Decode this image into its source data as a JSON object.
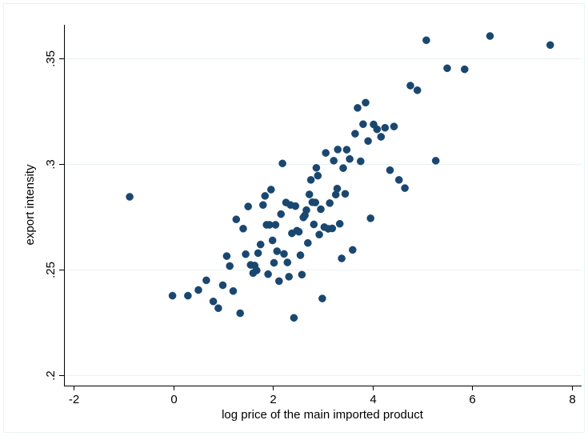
{
  "chart_data": {
    "type": "scatter",
    "title": "",
    "xlabel": "log price of the main imported product",
    "ylabel": "export intensity",
    "xlim": [
      -2.2,
      8.2
    ],
    "ylim": [
      0.195,
      0.366
    ],
    "xticks": [
      -2,
      0,
      2,
      4,
      6,
      8
    ],
    "xtick_labels": [
      "-2",
      "0",
      "2",
      "4",
      "6",
      "8"
    ],
    "yticks": [
      0.2,
      0.25,
      0.3,
      0.35
    ],
    "ytick_labels": [
      ".2",
      ".25",
      ".3",
      ".35"
    ],
    "grid": "horizontal",
    "legend": "none",
    "marker_color": "#1a476f",
    "points": [
      [
        -0.88,
        0.2845
      ],
      [
        -0.02,
        0.2376
      ],
      [
        0.29,
        0.2376
      ],
      [
        0.5,
        0.2403
      ],
      [
        0.66,
        0.2449
      ],
      [
        0.8,
        0.2349
      ],
      [
        0.9,
        0.2317
      ],
      [
        0.99,
        0.2426
      ],
      [
        1.07,
        0.2564
      ],
      [
        1.13,
        0.2517
      ],
      [
        1.2,
        0.2398
      ],
      [
        1.26,
        0.2738
      ],
      [
        1.34,
        0.2293
      ],
      [
        1.4,
        0.2694
      ],
      [
        1.45,
        0.2573
      ],
      [
        1.5,
        0.2799
      ],
      [
        1.55,
        0.2522
      ],
      [
        1.6,
        0.2483
      ],
      [
        1.63,
        0.2519
      ],
      [
        1.67,
        0.2496
      ],
      [
        1.7,
        0.2578
      ],
      [
        1.75,
        0.2619
      ],
      [
        1.8,
        0.2806
      ],
      [
        1.84,
        0.2849
      ],
      [
        1.87,
        0.2712
      ],
      [
        1.9,
        0.2478
      ],
      [
        1.93,
        0.2712
      ],
      [
        1.96,
        0.2879
      ],
      [
        1.99,
        0.2638
      ],
      [
        2.02,
        0.2532
      ],
      [
        2.05,
        0.2712
      ],
      [
        2.08,
        0.2587
      ],
      [
        2.12,
        0.2445
      ],
      [
        2.16,
        0.2763
      ],
      [
        2.19,
        0.3003
      ],
      [
        2.22,
        0.2574
      ],
      [
        2.26,
        0.2818
      ],
      [
        2.29,
        0.2534
      ],
      [
        2.32,
        0.2466
      ],
      [
        2.35,
        0.2806
      ],
      [
        2.38,
        0.2672
      ],
      [
        2.42,
        0.2271
      ],
      [
        2.45,
        0.2801
      ],
      [
        2.48,
        0.2684
      ],
      [
        2.52,
        0.2679
      ],
      [
        2.55,
        0.2568
      ],
      [
        2.58,
        0.2476
      ],
      [
        2.61,
        0.2747
      ],
      [
        2.64,
        0.2757
      ],
      [
        2.67,
        0.2782
      ],
      [
        2.7,
        0.2626
      ],
      [
        2.73,
        0.2856
      ],
      [
        2.76,
        0.2925
      ],
      [
        2.79,
        0.2819
      ],
      [
        2.82,
        0.2714
      ],
      [
        2.85,
        0.2818
      ],
      [
        2.87,
        0.2982
      ],
      [
        2.9,
        0.2945
      ],
      [
        2.93,
        0.2666
      ],
      [
        2.96,
        0.2786
      ],
      [
        2.99,
        0.2363
      ],
      [
        3.03,
        0.2701
      ],
      [
        3.06,
        0.3053
      ],
      [
        3.11,
        0.2693
      ],
      [
        3.14,
        0.2815
      ],
      [
        3.19,
        0.2695
      ],
      [
        3.22,
        0.3016
      ],
      [
        3.26,
        0.2855
      ],
      [
        3.29,
        0.2884
      ],
      [
        3.3,
        0.3069
      ],
      [
        3.34,
        0.2717
      ],
      [
        3.38,
        0.2553
      ],
      [
        3.41,
        0.2981
      ],
      [
        3.45,
        0.2859
      ],
      [
        3.48,
        0.3068
      ],
      [
        3.54,
        0.3024
      ],
      [
        3.6,
        0.2593
      ],
      [
        3.65,
        0.3144
      ],
      [
        3.7,
        0.3266
      ],
      [
        3.76,
        0.3013
      ],
      [
        3.81,
        0.3189
      ],
      [
        3.86,
        0.3291
      ],
      [
        3.91,
        0.3109
      ],
      [
        3.96,
        0.2743
      ],
      [
        4.02,
        0.3188
      ],
      [
        4.09,
        0.3165
      ],
      [
        4.17,
        0.3129
      ],
      [
        4.25,
        0.3172
      ],
      [
        4.35,
        0.2971
      ],
      [
        4.43,
        0.3178
      ],
      [
        4.53,
        0.2925
      ],
      [
        4.65,
        0.2886
      ],
      [
        4.76,
        0.3372
      ],
      [
        4.9,
        0.335
      ],
      [
        5.08,
        0.3587
      ],
      [
        5.27,
        0.3016
      ],
      [
        5.5,
        0.3454
      ],
      [
        5.85,
        0.3449
      ],
      [
        6.36,
        0.3607
      ],
      [
        7.57,
        0.3564
      ]
    ]
  }
}
